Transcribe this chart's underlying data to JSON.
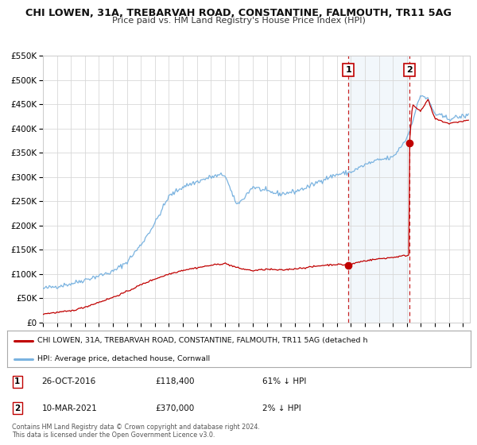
{
  "title": "CHI LOWEN, 31A, TREBARVAH ROAD, CONSTANTINE, FALMOUTH, TR11 5AG",
  "subtitle": "Price paid vs. HM Land Registry's House Price Index (HPI)",
  "ylim": [
    0,
    550000
  ],
  "yticks": [
    0,
    50000,
    100000,
    150000,
    200000,
    250000,
    300000,
    350000,
    400000,
    450000,
    500000,
    550000
  ],
  "ytick_labels": [
    "£0",
    "£50K",
    "£100K",
    "£150K",
    "£200K",
    "£250K",
    "£300K",
    "£350K",
    "£400K",
    "£450K",
    "£500K",
    "£550K"
  ],
  "xlim_start": 1995.0,
  "xlim_end": 2025.5,
  "hpi_color": "#7ab3e0",
  "price_color": "#c00000",
  "marker_color": "#c00000",
  "dashed_line_color": "#c00000",
  "sale1_x": 2016.82,
  "sale1_y": 118400,
  "sale2_x": 2021.19,
  "sale2_y": 370000,
  "legend_label_red": "CHI LOWEN, 31A, TREBARVAH ROAD, CONSTANTINE, FALMOUTH, TR11 5AG (detached h",
  "legend_label_blue": "HPI: Average price, detached house, Cornwall",
  "table_row1": [
    "1",
    "26-OCT-2016",
    "£118,400",
    "61% ↓ HPI"
  ],
  "table_row2": [
    "2",
    "10-MAR-2021",
    "£370,000",
    "2% ↓ HPI"
  ],
  "footer1": "Contains HM Land Registry data © Crown copyright and database right 2024.",
  "footer2": "This data is licensed under the Open Government Licence v3.0.",
  "bg_color": "#ffffff",
  "grid_color": "#d8d8d8",
  "span_color": "#cce0f0"
}
